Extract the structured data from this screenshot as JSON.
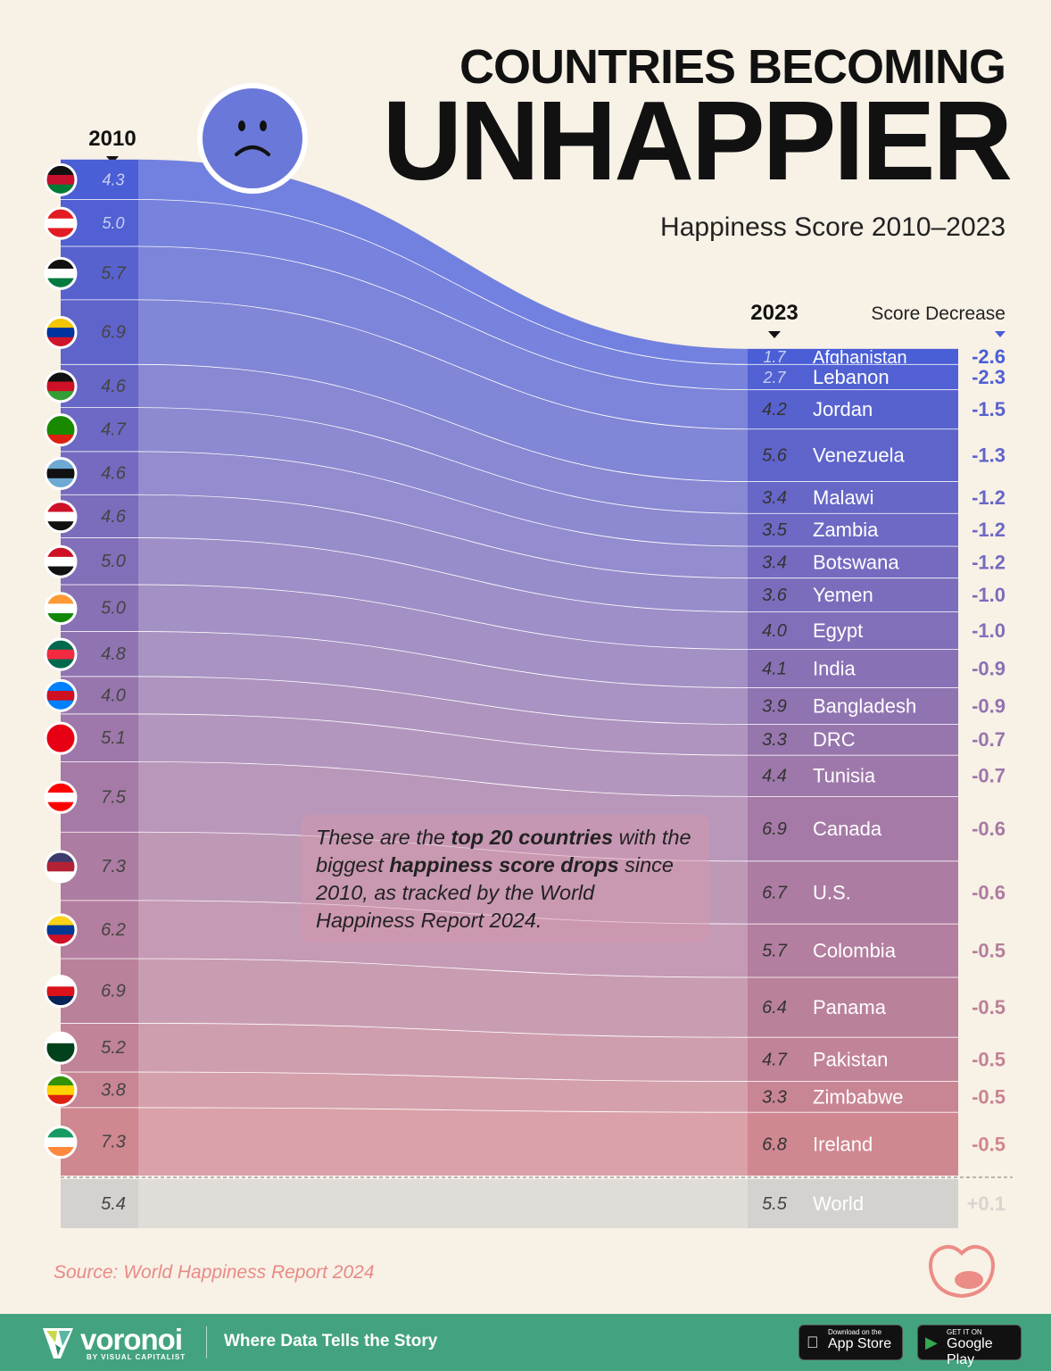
{
  "title": {
    "line1": "COUNTRIES BECOMING",
    "line2": "UNHAPPIER",
    "subtitle": "Happiness Score 2010–2023"
  },
  "note": {
    "p1": "These are the ",
    "b1": "top 20 countries",
    "p2": " with the biggest ",
    "b2": "happiness score drops",
    "p3": " since 2010, as tracked by the World Happiness Report 2024."
  },
  "source": "Source: World Happiness Report 2024",
  "footer": {
    "brand": "voronoi",
    "brand_sub": "BY VISUAL CAPITALIST",
    "tagline": "Where Data Tells the Story",
    "appstore_small": "Download on the",
    "appstore": "App Store",
    "gplay_small": "GET IT ON",
    "gplay": "Google Play"
  },
  "chart_data": {
    "type": "slope",
    "xlabel_left": "2010",
    "xlabel_right": "2023",
    "change_label": "Score Decrease",
    "colors": {
      "top": "#4a5ed6",
      "bottom": "#cf8790",
      "world": "#d4d2cf"
    },
    "rows": [
      {
        "country": "Afghanistan",
        "y2010": 4.3,
        "y2023": 1.7,
        "change": "-2.6",
        "flag": [
          "#111111",
          "#c8102e",
          "#007a36"
        ]
      },
      {
        "country": "Lebanon",
        "y2010": 5.0,
        "y2023": 2.7,
        "change": "-2.3",
        "flag": [
          "#e31b23",
          "#ffffff",
          "#e31b23"
        ]
      },
      {
        "country": "Jordan",
        "y2010": 5.7,
        "y2023": 4.2,
        "change": "-1.5",
        "flag": [
          "#111111",
          "#ffffff",
          "#007a3d"
        ]
      },
      {
        "country": "Venezuela",
        "y2010": 6.9,
        "y2023": 5.6,
        "change": "-1.3",
        "flag": [
          "#f4c400",
          "#0033a0",
          "#cf142b"
        ]
      },
      {
        "country": "Malawi",
        "y2010": 4.6,
        "y2023": 3.4,
        "change": "-1.2",
        "flag": [
          "#111111",
          "#ce1126",
          "#339e35"
        ]
      },
      {
        "country": "Zambia",
        "y2010": 4.7,
        "y2023": 3.5,
        "change": "-1.2",
        "flag": [
          "#198a00",
          "#198a00",
          "#de2010"
        ]
      },
      {
        "country": "Botswana",
        "y2010": 4.6,
        "y2023": 3.4,
        "change": "-1.2",
        "flag": [
          "#6da9d2",
          "#111111",
          "#6da9d2"
        ]
      },
      {
        "country": "Yemen",
        "y2010": 4.6,
        "y2023": 3.6,
        "change": "-1.0",
        "flag": [
          "#ce1126",
          "#ffffff",
          "#111111"
        ]
      },
      {
        "country": "Egypt",
        "y2010": 5.0,
        "y2023": 4.0,
        "change": "-1.0",
        "flag": [
          "#ce1126",
          "#ffffff",
          "#111111"
        ]
      },
      {
        "country": "India",
        "y2010": 5.0,
        "y2023": 4.1,
        "change": "-0.9",
        "flag": [
          "#ff9933",
          "#ffffff",
          "#138808"
        ]
      },
      {
        "country": "Bangladesh",
        "y2010": 4.8,
        "y2023": 3.9,
        "change": "-0.9",
        "flag": [
          "#006a4e",
          "#f42a41",
          "#006a4e"
        ]
      },
      {
        "country": "DRC",
        "y2010": 4.0,
        "y2023": 3.3,
        "change": "-0.7",
        "flag": [
          "#007fff",
          "#ce1021",
          "#007fff"
        ]
      },
      {
        "country": "Tunisia",
        "y2010": 5.1,
        "y2023": 4.4,
        "change": "-0.7",
        "flag": [
          "#e70013",
          "#e70013",
          "#e70013"
        ]
      },
      {
        "country": "Canada",
        "y2010": 7.5,
        "y2023": 6.9,
        "change": "-0.6",
        "flag": [
          "#ff0000",
          "#ffffff",
          "#ff0000"
        ]
      },
      {
        "country": "U.S.",
        "y2010": 7.3,
        "y2023": 6.7,
        "change": "-0.6",
        "flag": [
          "#3c3b6e",
          "#b22234",
          "#ffffff"
        ]
      },
      {
        "country": "Colombia",
        "y2010": 6.2,
        "y2023": 5.7,
        "change": "-0.5",
        "flag": [
          "#fcd116",
          "#003893",
          "#ce1126"
        ]
      },
      {
        "country": "Panama",
        "y2010": 6.9,
        "y2023": 6.4,
        "change": "-0.5",
        "flag": [
          "#ffffff",
          "#da121a",
          "#072357"
        ]
      },
      {
        "country": "Pakistan",
        "y2010": 5.2,
        "y2023": 4.7,
        "change": "-0.5",
        "flag": [
          "#ffffff",
          "#01411c",
          "#01411c"
        ]
      },
      {
        "country": "Zimbabwe",
        "y2010": 3.8,
        "y2023": 3.3,
        "change": "-0.5",
        "flag": [
          "#319208",
          "#ffd200",
          "#de2010"
        ]
      },
      {
        "country": "Ireland",
        "y2010": 7.3,
        "y2023": 6.8,
        "change": "-0.5",
        "flag": [
          "#169b62",
          "#ffffff",
          "#ff883e"
        ]
      }
    ],
    "world": {
      "country": "World",
      "y2010": 5.4,
      "y2023": 5.5,
      "change": "+0.1"
    }
  }
}
